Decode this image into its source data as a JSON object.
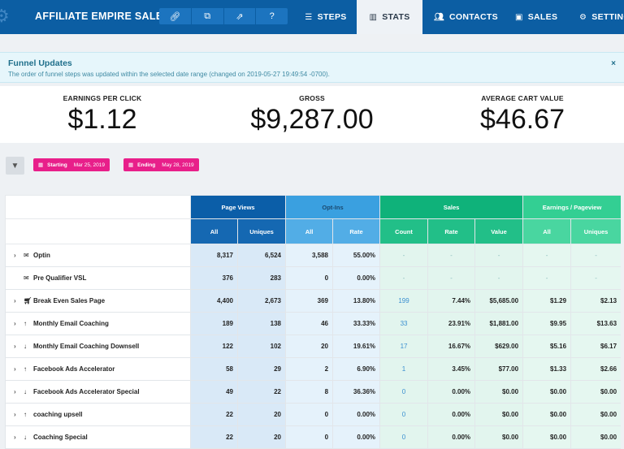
{
  "nav": {
    "brand": "AFFILIATE EMPIRE SALE...",
    "tabs": [
      {
        "label": "STEPS",
        "icon": "list-icon"
      },
      {
        "label": "STATS",
        "icon": "bar-chart-icon"
      },
      {
        "label": "CONTACTS",
        "icon": "users-icon"
      },
      {
        "label": "SALES",
        "icon": "money-icon"
      },
      {
        "label": "SETTINGS",
        "icon": "gear-icon"
      }
    ]
  },
  "banner": {
    "title": "Funnel Updates",
    "text": "The order of funnel steps was updated within the selected date range (changed on 2019-05-27 19:49:54 -0700).",
    "close": "×"
  },
  "metrics": [
    {
      "label": "EARNINGS PER CLICK",
      "value": "$1.12"
    },
    {
      "label": "GROSS",
      "value": "$9,287.00"
    },
    {
      "label": "AVERAGE CART VALUE",
      "value": "$46.67"
    }
  ],
  "filters": {
    "start_label": "Starting",
    "start_value": "Mar 25, 2019",
    "end_label": "Ending",
    "end_value": "May 28, 2019"
  },
  "table": {
    "groups": [
      "Page Views",
      "Opt-Ins",
      "Sales",
      "Earnings / Pageview"
    ],
    "subheaders": [
      "All",
      "Uniques",
      "All",
      "Rate",
      "Count",
      "Rate",
      "Value",
      "All",
      "Uniques"
    ],
    "rows": [
      {
        "name": "Optin",
        "icon": "envelope-icon",
        "chevron": true,
        "cells": [
          "8,317",
          "6,524",
          "3,588",
          "55.00%",
          "-",
          "-",
          "-",
          "-",
          "-"
        ]
      },
      {
        "name": "Pre Qualifier VSL",
        "icon": "envelope-icon",
        "chevron": false,
        "cells": [
          "376",
          "283",
          "0",
          "0.00%",
          "-",
          "-",
          "-",
          "-",
          "-"
        ]
      },
      {
        "name": "Break Even Sales Page",
        "icon": "cart-icon",
        "chevron": true,
        "cells": [
          "4,400",
          "2,673",
          "369",
          "13.80%",
          "199",
          "7.44%",
          "$5,685.00",
          "$1.29",
          "$2.13"
        ]
      },
      {
        "name": "Monthly Email Coaching",
        "icon": "arrow-up-icon",
        "chevron": true,
        "cells": [
          "189",
          "138",
          "46",
          "33.33%",
          "33",
          "23.91%",
          "$1,881.00",
          "$9.95",
          "$13.63"
        ]
      },
      {
        "name": "Monthly Email Coaching Downsell",
        "icon": "arrow-down-icon",
        "chevron": true,
        "cells": [
          "122",
          "102",
          "20",
          "19.61%",
          "17",
          "16.67%",
          "$629.00",
          "$5.16",
          "$6.17"
        ]
      },
      {
        "name": "Facebook Ads Accelerator",
        "icon": "arrow-up-icon",
        "chevron": true,
        "cells": [
          "58",
          "29",
          "2",
          "6.90%",
          "1",
          "3.45%",
          "$77.00",
          "$1.33",
          "$2.66"
        ]
      },
      {
        "name": "Facebook Ads Accelerator Special",
        "icon": "arrow-down-icon",
        "chevron": true,
        "cells": [
          "49",
          "22",
          "8",
          "36.36%",
          "0",
          "0.00%",
          "$0.00",
          "$0.00",
          "$0.00"
        ]
      },
      {
        "name": "coaching upsell",
        "icon": "arrow-up-icon",
        "chevron": true,
        "cells": [
          "22",
          "20",
          "0",
          "0.00%",
          "0",
          "0.00%",
          "$0.00",
          "$0.00",
          "$0.00"
        ]
      },
      {
        "name": "Coaching Special",
        "icon": "arrow-down-icon",
        "chevron": true,
        "cells": [
          "22",
          "20",
          "0",
          "0.00%",
          "0",
          "0.00%",
          "$0.00",
          "$0.00",
          "$0.00"
        ]
      }
    ]
  }
}
